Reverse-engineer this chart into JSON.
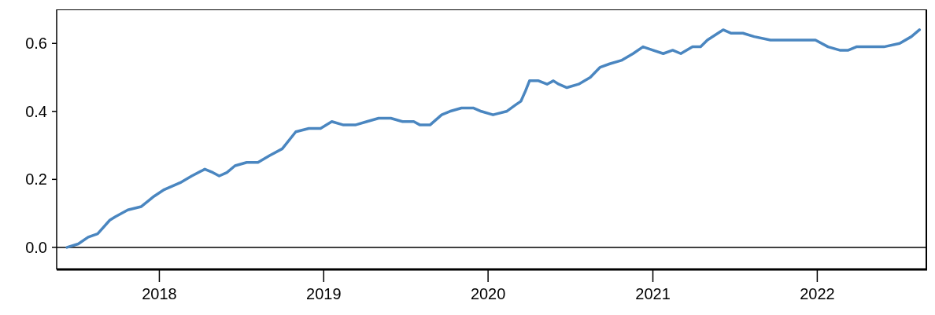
{
  "chart_data": {
    "type": "line",
    "x": [
      "2017-06-10",
      "2017-07-05",
      "2017-07-27",
      "2017-08-17",
      "2017-09-13",
      "2017-09-25",
      "2017-10-23",
      "2017-11-22",
      "2017-12-20",
      "2018-01-12",
      "2018-02-16",
      "2018-03-14",
      "2018-04-12",
      "2018-04-30",
      "2018-05-14",
      "2018-05-31",
      "2018-06-18",
      "2018-07-14",
      "2018-08-08",
      "2018-09-03",
      "2018-10-01",
      "2018-10-31",
      "2018-11-29",
      "2018-12-25",
      "2019-01-19",
      "2019-02-14",
      "2019-03-12",
      "2019-04-07",
      "2019-05-03",
      "2019-05-30",
      "2019-06-25",
      "2019-07-20",
      "2019-08-03",
      "2019-08-25",
      "2019-09-20",
      "2019-10-08",
      "2019-11-03",
      "2019-11-29",
      "2019-12-17",
      "2020-01-12",
      "2020-02-11",
      "2020-03-03",
      "2020-03-14",
      "2020-03-24",
      "2020-04-02",
      "2020-04-22",
      "2020-05-11",
      "2020-05-25",
      "2020-06-06",
      "2020-06-24",
      "2020-07-20",
      "2020-08-15",
      "2020-09-06",
      "2020-09-27",
      "2020-10-23",
      "2020-11-18",
      "2020-12-10",
      "2021-01-01",
      "2021-01-24",
      "2021-02-14",
      "2021-03-04",
      "2021-03-30",
      "2021-04-17",
      "2021-05-02",
      "2021-06-06",
      "2021-06-24",
      "2021-07-20",
      "2021-08-14",
      "2021-09-19",
      "2021-10-15",
      "2021-11-04",
      "2021-11-27",
      "2021-12-28",
      "2022-01-25",
      "2022-02-20",
      "2022-03-11",
      "2022-03-29",
      "2022-04-24",
      "2022-05-29",
      "2022-07-03",
      "2022-07-29",
      "2022-08-16"
    ],
    "series": [
      {
        "color": "#4a86c0",
        "values": [
          0.0,
          0.01,
          0.03,
          0.04,
          0.08,
          0.09,
          0.11,
          0.12,
          0.15,
          0.17,
          0.19,
          0.21,
          0.23,
          0.22,
          0.21,
          0.22,
          0.24,
          0.25,
          0.25,
          0.27,
          0.29,
          0.34,
          0.35,
          0.35,
          0.37,
          0.36,
          0.36,
          0.37,
          0.38,
          0.38,
          0.37,
          0.37,
          0.36,
          0.36,
          0.39,
          0.4,
          0.41,
          0.41,
          0.4,
          0.39,
          0.4,
          0.42,
          0.43,
          0.46,
          0.49,
          0.49,
          0.48,
          0.49,
          0.48,
          0.47,
          0.48,
          0.5,
          0.53,
          0.54,
          0.55,
          0.57,
          0.59,
          0.58,
          0.57,
          0.58,
          0.57,
          0.59,
          0.59,
          0.61,
          0.64,
          0.63,
          0.63,
          0.62,
          0.61,
          0.61,
          0.61,
          0.61,
          0.61,
          0.59,
          0.58,
          0.58,
          0.59,
          0.59,
          0.59,
          0.6,
          0.62,
          0.64
        ]
      }
    ],
    "xlim": [
      "2017-05-18",
      "2022-09-02"
    ],
    "xticks": [
      "2018",
      "2019",
      "2020",
      "2021",
      "2022"
    ],
    "ylim": [
      -0.065,
      0.7
    ],
    "yticks": [
      {
        "value": 0,
        "label": "0.0"
      },
      {
        "value": 0.2,
        "label": "0.2"
      },
      {
        "value": 0.4,
        "label": "0.4"
      },
      {
        "value": 0.6,
        "label": "0.6"
      }
    ],
    "ref_lines": [
      {
        "axis": "y",
        "value": 0,
        "color": "#000000"
      }
    ],
    "grid": false,
    "marker": "none",
    "line_style": "solid"
  }
}
